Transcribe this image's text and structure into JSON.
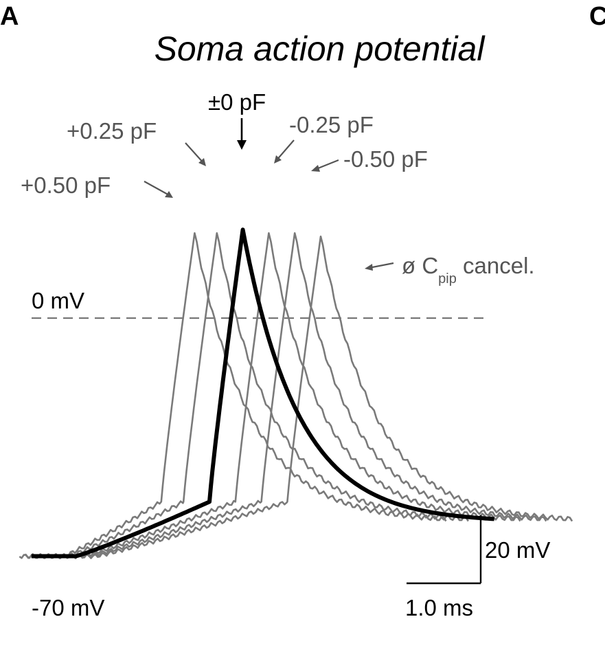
{
  "panel": {
    "letter": "A",
    "next_letter": "C"
  },
  "chart_data": {
    "type": "line",
    "title": "Soma action potential",
    "xlabel": "",
    "ylabel": "",
    "reference_line": {
      "label": "0 mV",
      "value_mV": 0,
      "style": "dashed"
    },
    "baseline_label": "-70 mV",
    "scale_bar": {
      "time_label": "1.0 ms",
      "time_ms": 1.0,
      "voltage_label": "20 mV",
      "voltage_mV": 20
    },
    "series": [
      {
        "name": "+0.50 pF",
        "color": "#7a7a7a",
        "t_onset_ms": -0.65,
        "peak_mV": 25,
        "rest_mV": -70
      },
      {
        "name": "+0.25 pF",
        "color": "#7a7a7a",
        "t_onset_ms": -0.35,
        "peak_mV": 25,
        "rest_mV": -70
      },
      {
        "name": "±0 pF",
        "color": "#000000",
        "t_onset_ms": 0.0,
        "peak_mV": 26,
        "rest_mV": -70
      },
      {
        "name": "-0.25 pF",
        "color": "#7a7a7a",
        "t_onset_ms": 0.35,
        "peak_mV": 25,
        "rest_mV": -70
      },
      {
        "name": "-0.50 pF",
        "color": "#7a7a7a",
        "t_onset_ms": 0.7,
        "peak_mV": 25,
        "rest_mV": -70
      },
      {
        "name": "ø Cpip cancel.",
        "color": "#7a7a7a",
        "t_onset_ms": 1.05,
        "peak_mV": 24,
        "rest_mV": -70
      }
    ],
    "annotations": {
      "plus050": "+0.50 pF",
      "plus025": "+0.25 pF",
      "zero": "±0 pF",
      "minus025": "-0.25 pF",
      "minus050": "-0.50 pF",
      "nocancel_prefix": "ø C",
      "nocancel_sub": "pip",
      "nocancel_suffix": " cancel."
    }
  }
}
